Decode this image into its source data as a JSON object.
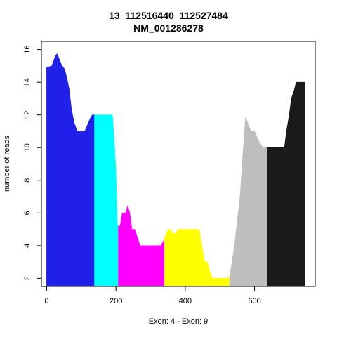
{
  "chart_data": {
    "type": "area",
    "title_lines": [
      "13_112516440_112527484",
      "NM_001286278"
    ],
    "xlabel": "Exon: 4 - Exon: 9",
    "ylabel": "number of reads",
    "xlim": [
      -15,
      775
    ],
    "ylim": [
      1.5,
      16.5
    ],
    "x_ticks": [
      0,
      200,
      400,
      600
    ],
    "y_ticks": [
      2,
      4,
      6,
      8,
      10,
      12,
      14,
      16
    ],
    "grid": false,
    "legend": "none",
    "baseline": 1.5,
    "series": [
      {
        "color": "#2020E8",
        "points": [
          [
            0,
            14.9
          ],
          [
            8,
            14.95
          ],
          [
            15,
            15.0
          ],
          [
            20,
            15.3
          ],
          [
            25,
            15.6
          ],
          [
            30,
            15.75
          ],
          [
            35,
            15.5
          ],
          [
            40,
            15.2
          ],
          [
            45,
            15.0
          ],
          [
            52,
            14.8
          ],
          [
            58,
            14.3
          ],
          [
            65,
            13.6
          ],
          [
            72,
            12.3
          ],
          [
            80,
            11.5
          ],
          [
            88,
            11.0
          ],
          [
            110,
            11.0
          ],
          [
            118,
            11.4
          ],
          [
            126,
            11.8
          ],
          [
            132,
            12.0
          ],
          [
            138,
            12.0
          ]
        ]
      },
      {
        "color": "#00FFFF",
        "points": [
          [
            138,
            12.0
          ],
          [
            190,
            12.0
          ],
          [
            195,
            10.5
          ],
          [
            200,
            8.5
          ],
          [
            204,
            5.3
          ],
          [
            207,
            5.2
          ]
        ]
      },
      {
        "color": "#FF00FF",
        "points": [
          [
            207,
            5.2
          ],
          [
            212,
            5.2
          ],
          [
            218,
            6.0
          ],
          [
            228,
            6.0
          ],
          [
            234,
            6.45
          ],
          [
            240,
            6.0
          ],
          [
            246,
            5.0
          ],
          [
            254,
            5.0
          ],
          [
            262,
            4.5
          ],
          [
            270,
            4.0
          ],
          [
            330,
            4.0
          ],
          [
            340,
            4.4
          ]
        ]
      },
      {
        "color": "#FFFF00",
        "points": [
          [
            340,
            4.4
          ],
          [
            346,
            4.8
          ],
          [
            352,
            5.0
          ],
          [
            358,
            5.0
          ],
          [
            364,
            4.75
          ],
          [
            372,
            4.75
          ],
          [
            380,
            5.0
          ],
          [
            440,
            5.0
          ],
          [
            448,
            4.0
          ],
          [
            456,
            3.0
          ],
          [
            464,
            3.0
          ],
          [
            470,
            2.5
          ],
          [
            478,
            2.0
          ],
          [
            520,
            2.0
          ],
          [
            528,
            2.1
          ]
        ]
      },
      {
        "color": "#BEBEBE",
        "points": [
          [
            528,
            2.1
          ],
          [
            535,
            3.0
          ],
          [
            542,
            4.0
          ],
          [
            550,
            5.5
          ],
          [
            558,
            7.0
          ],
          [
            566,
            9.5
          ],
          [
            574,
            11.9
          ],
          [
            582,
            11.4
          ],
          [
            590,
            11.0
          ],
          [
            600,
            11.0
          ],
          [
            612,
            10.4
          ],
          [
            624,
            10.0
          ],
          [
            636,
            10.0
          ]
        ]
      },
      {
        "color": "#1A1A1A",
        "points": [
          [
            636,
            10.0
          ],
          [
            686,
            10.0
          ],
          [
            692,
            11.0
          ],
          [
            700,
            12.0
          ],
          [
            706,
            13.0
          ],
          [
            714,
            13.5
          ],
          [
            720,
            14.0
          ],
          [
            745,
            14.0
          ]
        ]
      }
    ]
  }
}
